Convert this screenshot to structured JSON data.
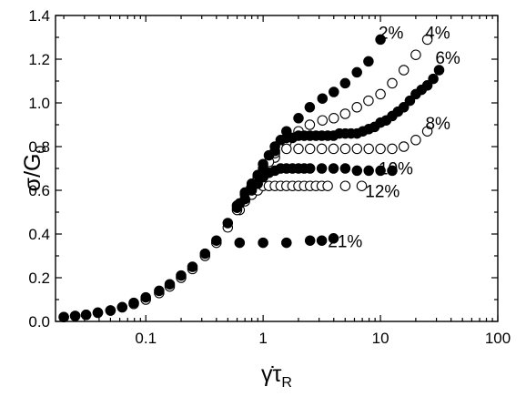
{
  "chart_data": {
    "type": "scatter",
    "title": "",
    "xlabel": "γ̇τR",
    "ylabel": "σ/G0",
    "x_scale": "log",
    "xlim": [
      0.017,
      100
    ],
    "ylim": [
      0,
      1.4
    ],
    "grid": false,
    "legend": "none",
    "x_ticks": [
      {
        "value": 0.1,
        "label": "0.1"
      },
      {
        "value": 1,
        "label": "1"
      },
      {
        "value": 10,
        "label": "10"
      },
      {
        "value": 100,
        "label": "100"
      }
    ],
    "y_ticks": [
      {
        "value": 0.0,
        "label": "0.0"
      },
      {
        "value": 0.2,
        "label": "0.2"
      },
      {
        "value": 0.4,
        "label": "0.4"
      },
      {
        "value": 0.6,
        "label": "0.6"
      },
      {
        "value": 0.8,
        "label": "0.8"
      },
      {
        "value": 1.0,
        "label": "1.0"
      },
      {
        "value": 1.2,
        "label": "1.2"
      },
      {
        "value": 1.4,
        "label": "1.4"
      }
    ],
    "series": [
      {
        "name": "2%",
        "marker": "filled",
        "x": [
          0.02,
          0.025,
          0.031,
          0.039,
          0.05,
          0.063,
          0.079,
          0.1,
          0.13,
          0.16,
          0.2,
          0.25,
          0.32,
          0.4,
          0.5,
          0.63,
          0.79,
          1.0,
          1.26,
          1.58,
          2.0,
          2.5,
          3.2,
          4.0,
          5.0,
          6.3,
          7.9,
          10.0
        ],
        "y": [
          0.02,
          0.025,
          0.03,
          0.04,
          0.05,
          0.065,
          0.085,
          0.11,
          0.14,
          0.17,
          0.21,
          0.25,
          0.31,
          0.37,
          0.45,
          0.54,
          0.61,
          0.69,
          0.78,
          0.87,
          0.93,
          0.98,
          1.02,
          1.05,
          1.09,
          1.14,
          1.19,
          1.29
        ]
      },
      {
        "name": "4%",
        "marker": "open",
        "x": [
          0.02,
          0.025,
          0.031,
          0.039,
          0.05,
          0.063,
          0.079,
          0.1,
          0.13,
          0.16,
          0.2,
          0.25,
          0.32,
          0.4,
          0.5,
          0.63,
          0.79,
          1.0,
          1.26,
          1.58,
          2.0,
          2.5,
          3.2,
          4.0,
          5.0,
          6.3,
          7.9,
          10.0,
          12.6,
          15.8,
          20.0,
          25.1
        ],
        "y": [
          0.02,
          0.025,
          0.03,
          0.04,
          0.05,
          0.065,
          0.08,
          0.1,
          0.13,
          0.16,
          0.2,
          0.24,
          0.3,
          0.36,
          0.43,
          0.51,
          0.59,
          0.66,
          0.75,
          0.82,
          0.87,
          0.9,
          0.92,
          0.93,
          0.95,
          0.98,
          1.01,
          1.04,
          1.09,
          1.15,
          1.22,
          1.29
        ]
      },
      {
        "name": "6%",
        "marker": "filled",
        "x": [
          0.6,
          0.7,
          0.8,
          0.9,
          1.0,
          1.12,
          1.26,
          1.41,
          1.58,
          1.78,
          2.0,
          2.24,
          2.51,
          2.82,
          3.16,
          3.55,
          3.98,
          4.47,
          5.01,
          5.62,
          6.31,
          7.08,
          7.94,
          8.91,
          10.0,
          11.2,
          12.6,
          14.1,
          15.8,
          17.8,
          20.0,
          22.4,
          25.1,
          28.2,
          31.6
        ],
        "y": [
          0.53,
          0.59,
          0.63,
          0.67,
          0.72,
          0.76,
          0.8,
          0.83,
          0.84,
          0.84,
          0.85,
          0.85,
          0.85,
          0.85,
          0.85,
          0.85,
          0.85,
          0.86,
          0.86,
          0.86,
          0.86,
          0.87,
          0.88,
          0.89,
          0.91,
          0.92,
          0.94,
          0.96,
          0.98,
          1.01,
          1.04,
          1.06,
          1.08,
          1.11,
          1.15
        ]
      },
      {
        "name": "8%",
        "marker": "open",
        "x": [
          0.6,
          0.7,
          0.8,
          0.9,
          1.0,
          1.12,
          1.26,
          1.58,
          2.0,
          2.51,
          3.16,
          3.98,
          5.01,
          6.31,
          7.94,
          10.0,
          12.6,
          15.8,
          20.0,
          25.1
        ],
        "y": [
          0.53,
          0.58,
          0.62,
          0.66,
          0.7,
          0.73,
          0.77,
          0.79,
          0.79,
          0.79,
          0.79,
          0.79,
          0.79,
          0.79,
          0.79,
          0.79,
          0.79,
          0.8,
          0.83,
          0.87
        ]
      },
      {
        "name": "10%",
        "marker": "filled",
        "x": [
          0.6,
          0.7,
          0.8,
          0.9,
          1.0,
          1.12,
          1.26,
          1.41,
          1.58,
          1.78,
          2.0,
          2.24,
          2.51,
          3.16,
          3.98,
          5.01,
          6.31,
          7.94,
          10.0,
          12.6
        ],
        "y": [
          0.52,
          0.56,
          0.6,
          0.63,
          0.66,
          0.68,
          0.69,
          0.7,
          0.7,
          0.7,
          0.7,
          0.7,
          0.7,
          0.7,
          0.7,
          0.7,
          0.69,
          0.69,
          0.69,
          0.69
        ]
      },
      {
        "name": "12%",
        "marker": "open",
        "x": [
          0.6,
          0.7,
          0.8,
          0.9,
          1.0,
          1.12,
          1.26,
          1.41,
          1.58,
          1.78,
          2.0,
          2.24,
          2.51,
          2.82,
          3.16,
          3.55,
          5.01,
          6.92
        ],
        "y": [
          0.51,
          0.55,
          0.58,
          0.6,
          0.62,
          0.62,
          0.62,
          0.62,
          0.62,
          0.62,
          0.62,
          0.62,
          0.62,
          0.62,
          0.62,
          0.62,
          0.62,
          0.62
        ]
      },
      {
        "name": "21%",
        "marker": "filled",
        "x": [
          0.63,
          1.0,
          1.58,
          2.51,
          3.16,
          3.98
        ],
        "y": [
          0.36,
          0.36,
          0.36,
          0.37,
          0.37,
          0.38
        ]
      }
    ],
    "annotations": [
      {
        "text": "2%",
        "x": 12.3,
        "y": 1.315
      },
      {
        "text": "4%",
        "x": 30.7,
        "y": 1.315
      },
      {
        "text": "6%",
        "x": 37.5,
        "y": 1.2
      },
      {
        "text": "8%",
        "x": 30.9,
        "y": 0.9
      },
      {
        "text": "10%",
        "x": 13.5,
        "y": 0.694
      },
      {
        "text": "12%",
        "x": 10.4,
        "y": 0.59
      },
      {
        "text": "21%",
        "x": 5.0,
        "y": 0.361
      }
    ]
  }
}
